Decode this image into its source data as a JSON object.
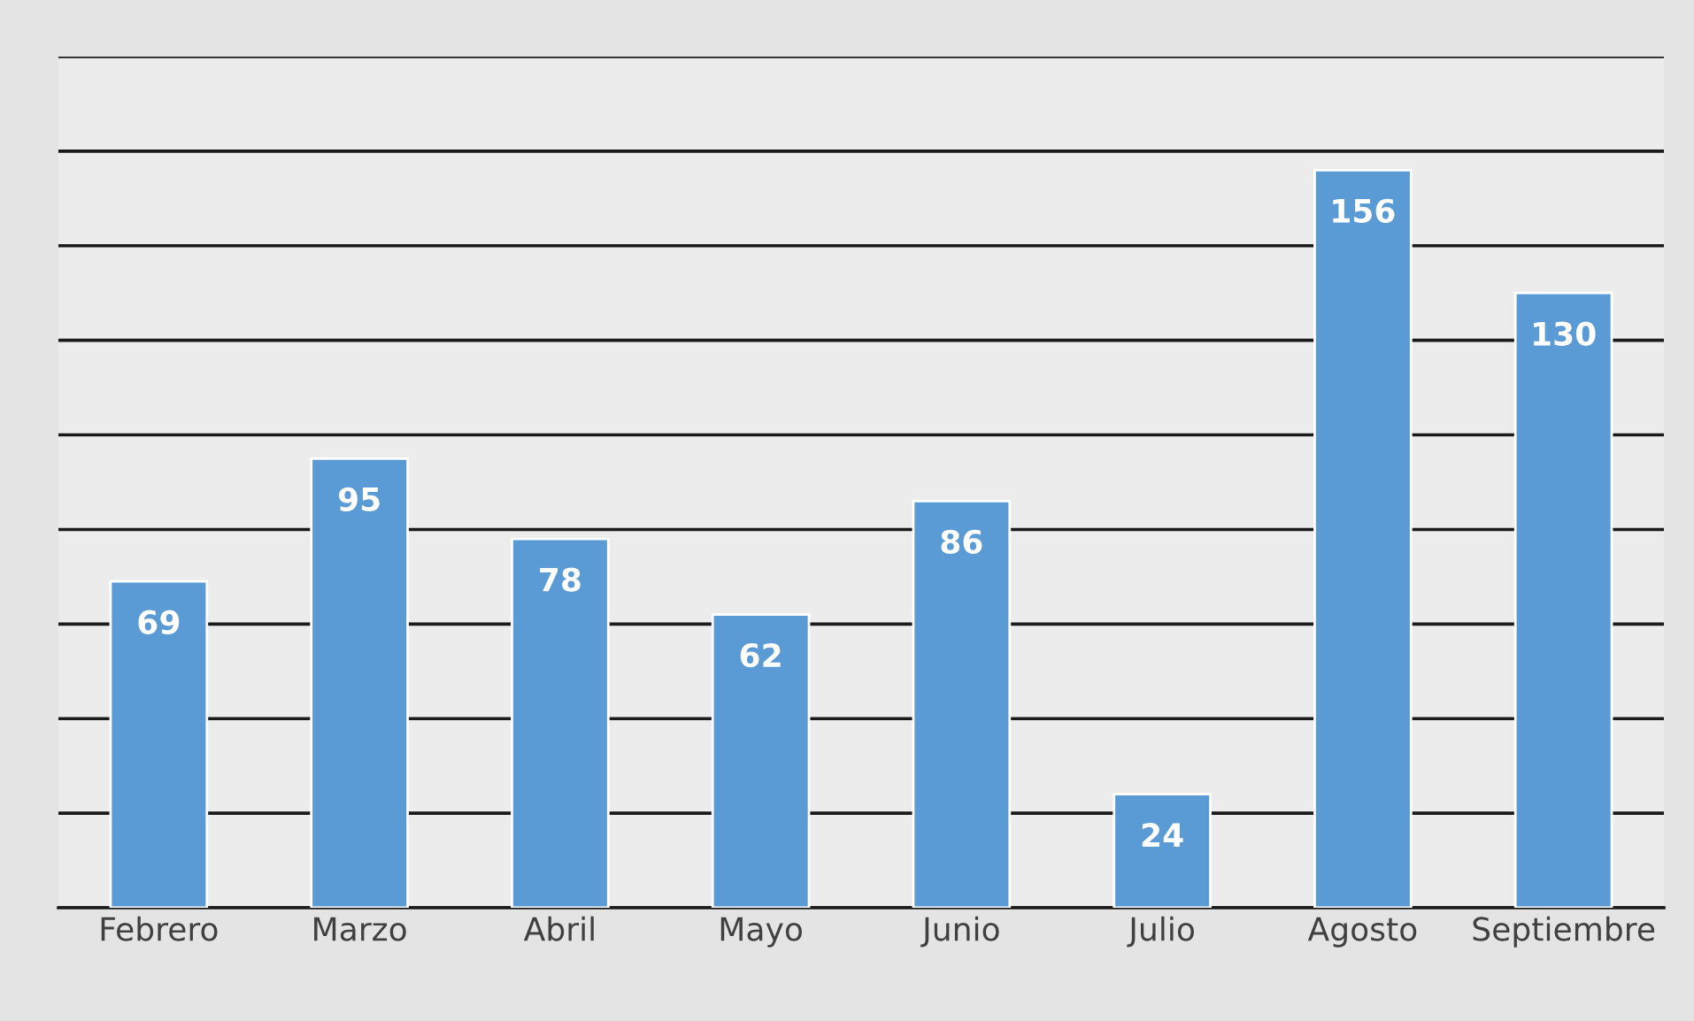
{
  "chart_data": {
    "type": "bar",
    "categories": [
      "Febrero",
      "Marzo",
      "Abril",
      "Mayo",
      "Junio",
      "Julio",
      "Agosto",
      "Septiembre"
    ],
    "values": [
      69,
      95,
      78,
      62,
      86,
      24,
      156,
      130
    ],
    "color": "#5b9bd5",
    "ylim": [
      0,
      180
    ],
    "yticks": [
      {
        "value": 0,
        "label": null
      },
      {
        "value": 20,
        "label": null
      },
      {
        "value": 40,
        "label": null
      },
      {
        "value": 60,
        "label": null
      },
      {
        "value": 80,
        "label": null
      },
      {
        "value": 100,
        "label": null
      },
      {
        "value": 120,
        "label": null
      },
      {
        "value": 140,
        "label": null
      },
      {
        "value": 160,
        "label": null
      },
      {
        "value": 180,
        "label": null
      }
    ],
    "tick_labels": "x",
    "grid": "y",
    "data_labels": true,
    "legend": false
  }
}
